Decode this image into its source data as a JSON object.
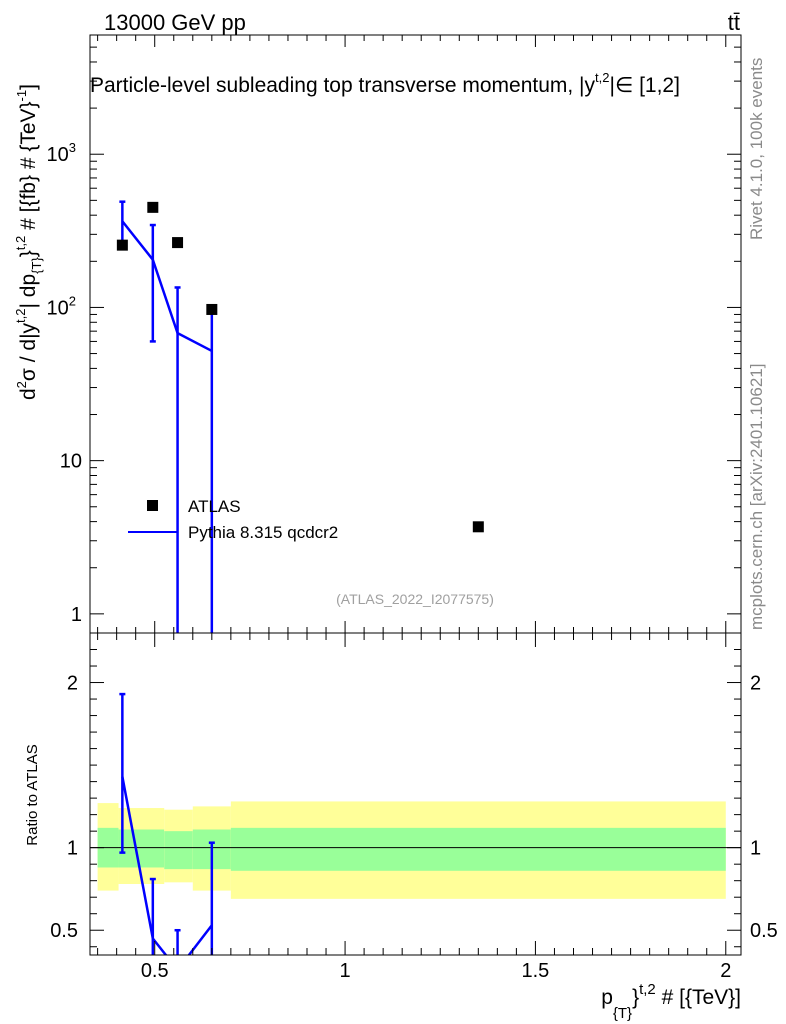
{
  "header": {
    "energy_label": "13000 GeV pp",
    "process_label": "tt̄"
  },
  "side_labels": {
    "rivet": "Rivet 4.1.0,  100k events",
    "mcplots": "mcplots.cern.ch [arXiv:2401.10621]"
  },
  "chart_data": [
    {
      "type": "scatter+line",
      "panel": "main",
      "title": "Particle-level subleading top transverse momentum, |y^{t,2}|∈[1,2]",
      "title_parts": {
        "main": "Particle-level subleading top transverse momentum, |",
        "ysym": "y",
        "sup": "t,2",
        "rest": "|∈ [1,2]"
      },
      "ylabel": "d²σ / d|y^{t,2}| dp_{T}^{t,2} # [{fb} # {TeV}^{-1}]",
      "ylabel_parts": {
        "a": "d",
        "b": "2",
        "c": "σ / d|y",
        "d": "t,2",
        "e": "| dp",
        "f": "{T}",
        "g": "}",
        "h": "t,2",
        "i": " # [{fb} # {TeV}",
        "j": "-1",
        "k": "]"
      },
      "yscale": "log",
      "ylim": [
        0.75,
        6000
      ],
      "xlim": [
        0.33,
        2.04
      ],
      "yticks": [
        {
          "value": 1,
          "label": "1"
        },
        {
          "value": 10,
          "label": "10"
        },
        {
          "value": 100,
          "label": "10",
          "sup": "2"
        },
        {
          "value": 1000,
          "label": "10",
          "sup": "3"
        }
      ],
      "watermark": "(ATLAS_2022_I2077575)",
      "legend": [
        {
          "name": "ATLAS",
          "marker": "square"
        },
        {
          "name": "Pythia 8.315 qcdcr2",
          "marker": "line"
        }
      ],
      "series": [
        {
          "name": "ATLAS",
          "color": "#000000",
          "points": [
            {
              "x": 0.415,
              "y": 255
            },
            {
              "x": 0.495,
              "y": 450
            },
            {
              "x": 0.56,
              "y": 265
            },
            {
              "x": 0.65,
              "y": 97
            },
            {
              "x": 1.35,
              "y": 3.7
            }
          ]
        },
        {
          "name": "Pythia 8.315 qcdcr2",
          "color": "#0000ff",
          "points": [
            {
              "x": 0.415,
              "y": 365,
              "ylo": 255,
              "yhi": 490
            },
            {
              "x": 0.495,
              "y": 205,
              "ylo": 60,
              "yhi": 345
            },
            {
              "x": 0.56,
              "y": 68,
              "ylo": 0.5,
              "yhi": 135
            },
            {
              "x": 0.65,
              "y": 52,
              "ylo": 0.5,
              "yhi": 100
            }
          ]
        }
      ]
    },
    {
      "type": "ratio",
      "panel": "ratio",
      "ylabel": "Ratio to ATLAS",
      "xlabel": "p_{T}^{t,2} # [{TeV}]",
      "xlabel_parts": {
        "a": "p",
        "b": "{T}",
        "c": "}",
        "d": "t,2",
        "e": " # [{TeV}]"
      },
      "xlim": [
        0.33,
        2.04
      ],
      "ylim": [
        0.35,
        2.3
      ],
      "xticks": [
        {
          "value": 0.5,
          "label": "0.5"
        },
        {
          "value": 1,
          "label": "1"
        },
        {
          "value": 1.5,
          "label": "1.5"
        },
        {
          "value": 2,
          "label": "2"
        }
      ],
      "yticks": [
        {
          "value": 0.5,
          "label": "0.5"
        },
        {
          "value": 1,
          "label": "1"
        },
        {
          "value": 2,
          "label": "2"
        }
      ],
      "bands": [
        {
          "x0": 0.35,
          "x1": 0.405,
          "stat_lo": 0.88,
          "stat_hi": 1.12,
          "tot_lo": 0.74,
          "tot_hi": 1.27
        },
        {
          "x0": 0.405,
          "x1": 0.525,
          "stat_lo": 0.88,
          "stat_hi": 1.11,
          "tot_lo": 0.78,
          "tot_hi": 1.24
        },
        {
          "x0": 0.525,
          "x1": 0.6,
          "stat_lo": 0.87,
          "stat_hi": 1.1,
          "tot_lo": 0.79,
          "tot_hi": 1.23
        },
        {
          "x0": 0.6,
          "x1": 0.7,
          "stat_lo": 0.87,
          "stat_hi": 1.11,
          "tot_lo": 0.74,
          "tot_hi": 1.25
        },
        {
          "x0": 0.7,
          "x1": 2.0,
          "stat_lo": 0.86,
          "stat_hi": 1.12,
          "tot_lo": 0.69,
          "tot_hi": 1.28
        }
      ],
      "band_colors": {
        "total": "#ffff99",
        "stat": "#99ff99"
      },
      "series": [
        {
          "name": "Pythia 8.315 qcdcr2",
          "color": "#0000ff",
          "points": [
            {
              "x": 0.415,
              "y": 1.43,
              "ylo": 0.97,
              "yhi": 1.93
            },
            {
              "x": 0.495,
              "y": 0.45,
              "ylo": 0.1,
              "yhi": 0.81
            },
            {
              "x": 0.56,
              "y": 0.26,
              "ylo": 0.0,
              "yhi": 0.5
            },
            {
              "x": 0.65,
              "y": 0.53,
              "ylo": 0.0,
              "yhi": 1.03
            }
          ]
        }
      ]
    }
  ]
}
